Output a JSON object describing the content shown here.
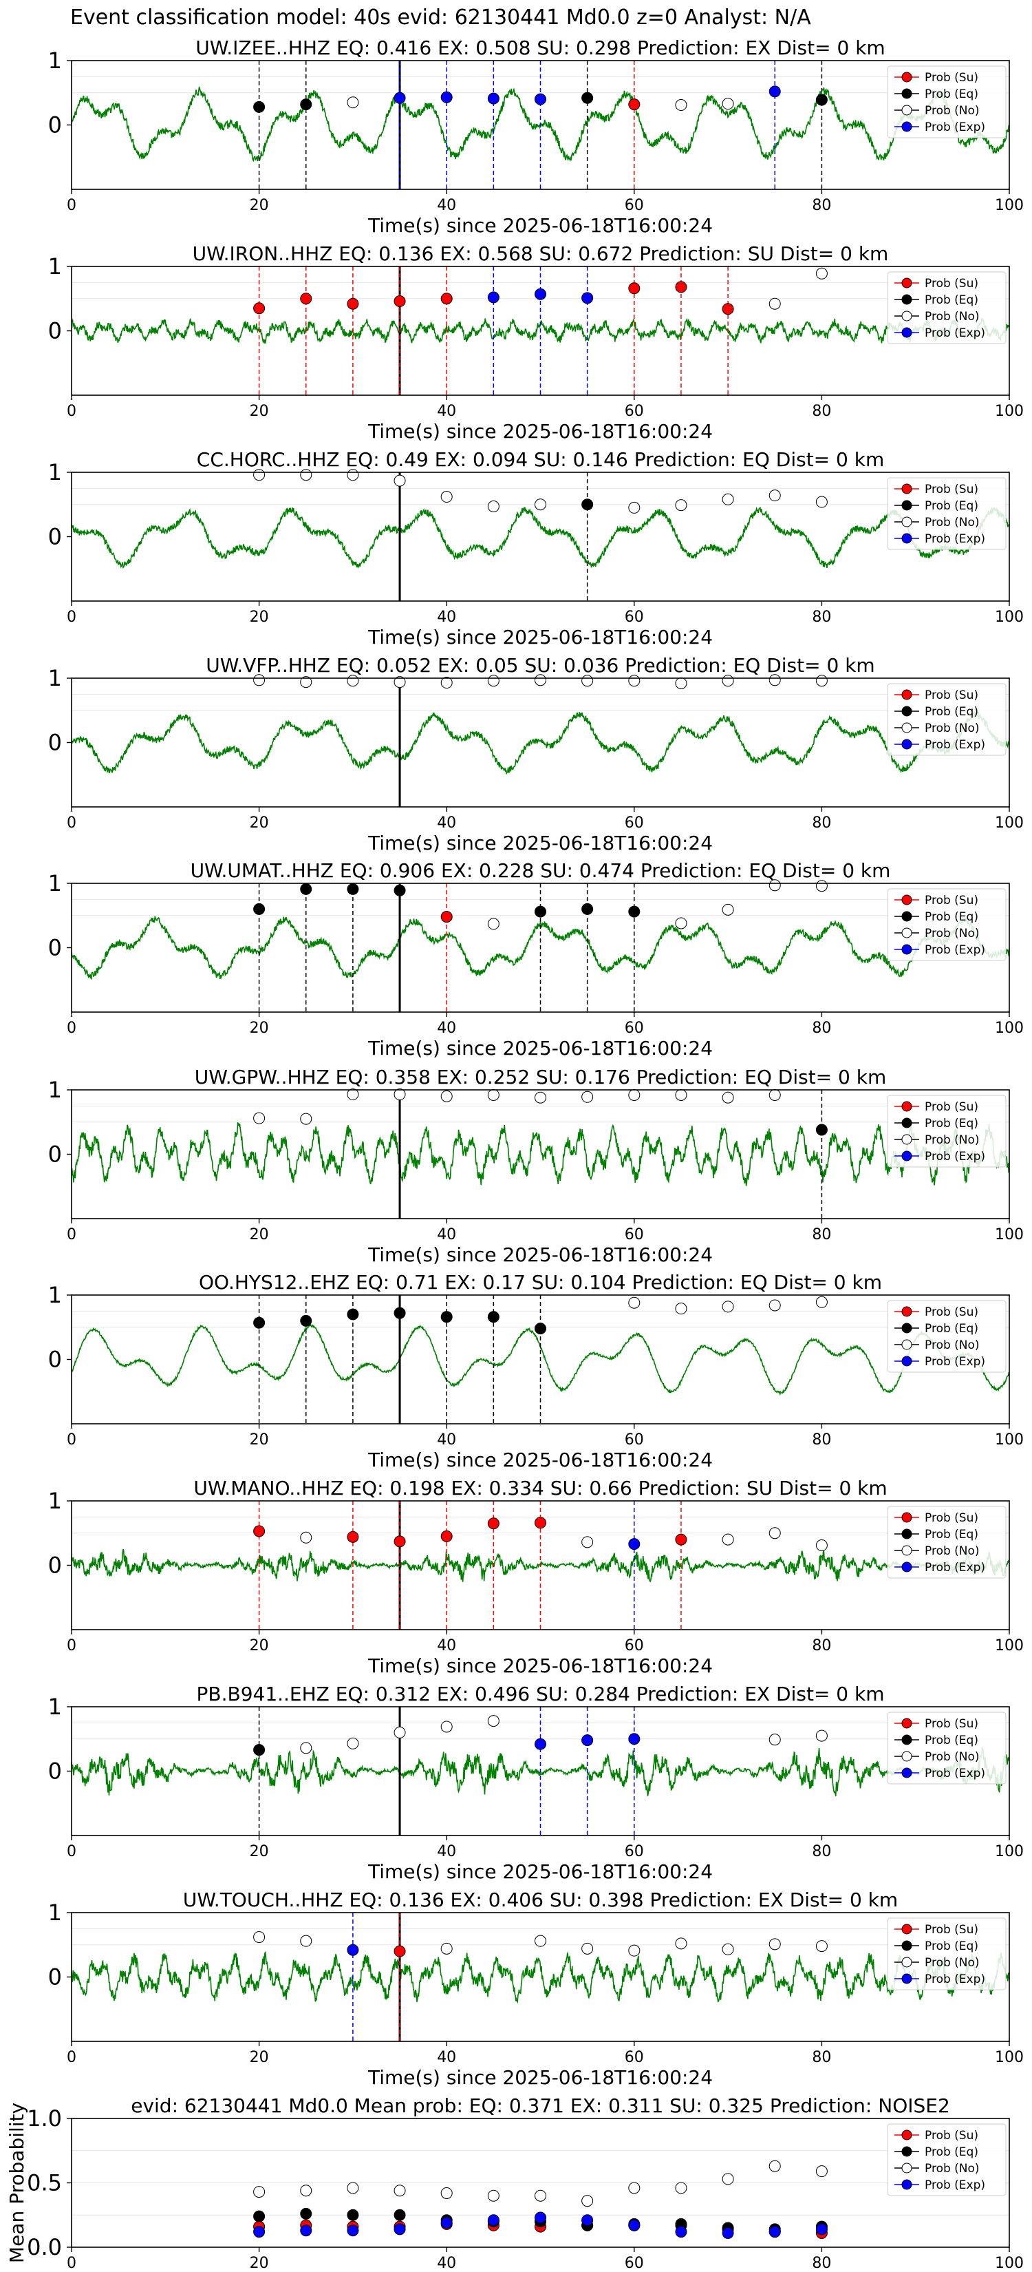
{
  "figure_title": "Event classification model: 40s evid: 62130441 Md0.0 z=0 Analyst: N/A",
  "colors": {
    "waveform": "#008000",
    "su": "#ff0000",
    "eq": "#000000",
    "no": "#ffffff",
    "exp": "#0000ff",
    "pick_line": "#000000"
  },
  "legend_labels": [
    "Prob (Su)",
    "Prob (Eq)",
    "Prob (No)",
    "Prob (Exp)"
  ],
  "chart_data": [
    {
      "type": "line",
      "station": "UW.IZEE..HHZ",
      "title": "UW.IZEE..HHZ   EQ: 0.416  EX: 0.508  SU: 0.298   Prediction: EX    Dist= 0 km",
      "xlabel": "Time(s) since 2025-06-18T16:00:24",
      "xlim": [
        0,
        100
      ],
      "ylim": [
        -1,
        1
      ],
      "xticks": [
        0,
        20,
        40,
        60,
        80,
        100
      ],
      "yticks": [
        0,
        1
      ],
      "grid": true,
      "legend": "right",
      "pick_time": 35,
      "points": [
        {
          "t": 20,
          "p": 0.28,
          "c": "eq"
        },
        {
          "t": 25,
          "p": 0.32,
          "c": "eq"
        },
        {
          "t": 30,
          "p": 0.35,
          "c": "no"
        },
        {
          "t": 35,
          "p": 0.42,
          "c": "exp"
        },
        {
          "t": 40,
          "p": 0.43,
          "c": "exp"
        },
        {
          "t": 45,
          "p": 0.41,
          "c": "exp"
        },
        {
          "t": 50,
          "p": 0.4,
          "c": "exp"
        },
        {
          "t": 55,
          "p": 0.42,
          "c": "eq"
        },
        {
          "t": 60,
          "p": 0.32,
          "c": "su"
        },
        {
          "t": 65,
          "p": 0.31,
          "c": "no"
        },
        {
          "t": 70,
          "p": 0.33,
          "c": "no"
        },
        {
          "t": 75,
          "p": 0.52,
          "c": "exp"
        },
        {
          "t": 80,
          "p": 0.39,
          "c": "eq"
        }
      ]
    },
    {
      "type": "line",
      "station": "UW.IRON..HHZ",
      "title": "UW.IRON..HHZ   EQ: 0.136  EX: 0.568  SU: 0.672   Prediction: SU    Dist= 0 km",
      "xlabel": "Time(s) since 2025-06-18T16:00:24",
      "xlim": [
        0,
        100
      ],
      "ylim": [
        -1,
        1
      ],
      "xticks": [
        0,
        20,
        40,
        60,
        80,
        100
      ],
      "yticks": [
        0,
        1
      ],
      "grid": true,
      "legend": "right",
      "pick_time": 35,
      "points": [
        {
          "t": 20,
          "p": 0.35,
          "c": "su"
        },
        {
          "t": 25,
          "p": 0.5,
          "c": "su"
        },
        {
          "t": 30,
          "p": 0.42,
          "c": "su"
        },
        {
          "t": 35,
          "p": 0.46,
          "c": "su"
        },
        {
          "t": 40,
          "p": 0.5,
          "c": "su"
        },
        {
          "t": 45,
          "p": 0.52,
          "c": "exp"
        },
        {
          "t": 50,
          "p": 0.57,
          "c": "exp"
        },
        {
          "t": 55,
          "p": 0.51,
          "c": "exp"
        },
        {
          "t": 60,
          "p": 0.66,
          "c": "su"
        },
        {
          "t": 65,
          "p": 0.68,
          "c": "su"
        },
        {
          "t": 70,
          "p": 0.34,
          "c": "su"
        },
        {
          "t": 75,
          "p": 0.42,
          "c": "no"
        },
        {
          "t": 80,
          "p": 0.89,
          "c": "no"
        }
      ]
    },
    {
      "type": "line",
      "station": "CC.HORC..HHZ",
      "title": "CC.HORC..HHZ   EQ: 0.49  EX: 0.094  SU: 0.146   Prediction: EQ    Dist= 0 km",
      "xlabel": "Time(s) since 2025-06-18T16:00:24",
      "xlim": [
        0,
        100
      ],
      "ylim": [
        -1,
        1
      ],
      "xticks": [
        0,
        20,
        40,
        60,
        80,
        100
      ],
      "yticks": [
        0,
        1
      ],
      "grid": true,
      "legend": "right",
      "pick_time": 35,
      "points": [
        {
          "t": 20,
          "p": 0.96,
          "c": "no"
        },
        {
          "t": 25,
          "p": 0.96,
          "c": "no"
        },
        {
          "t": 30,
          "p": 0.96,
          "c": "no"
        },
        {
          "t": 35,
          "p": 0.87,
          "c": "no"
        },
        {
          "t": 40,
          "p": 0.62,
          "c": "no"
        },
        {
          "t": 45,
          "p": 0.47,
          "c": "no"
        },
        {
          "t": 50,
          "p": 0.5,
          "c": "no"
        },
        {
          "t": 55,
          "p": 0.5,
          "c": "eq"
        },
        {
          "t": 60,
          "p": 0.45,
          "c": "no"
        },
        {
          "t": 65,
          "p": 0.49,
          "c": "no"
        },
        {
          "t": 70,
          "p": 0.58,
          "c": "no"
        },
        {
          "t": 75,
          "p": 0.64,
          "c": "no"
        },
        {
          "t": 80,
          "p": 0.54,
          "c": "no"
        }
      ]
    },
    {
      "type": "line",
      "station": "UW.VFP..HHZ",
      "title": "UW.VFP..HHZ   EQ: 0.052  EX: 0.05  SU: 0.036   Prediction: EQ    Dist= 0 km",
      "xlabel": "Time(s) since 2025-06-18T16:00:24",
      "xlim": [
        0,
        100
      ],
      "ylim": [
        -1,
        1
      ],
      "xticks": [
        0,
        20,
        40,
        60,
        80,
        100
      ],
      "yticks": [
        0,
        1
      ],
      "grid": true,
      "legend": "right",
      "pick_time": 35,
      "points": [
        {
          "t": 20,
          "p": 0.97,
          "c": "no"
        },
        {
          "t": 25,
          "p": 0.94,
          "c": "no"
        },
        {
          "t": 30,
          "p": 0.96,
          "c": "no"
        },
        {
          "t": 35,
          "p": 0.94,
          "c": "no"
        },
        {
          "t": 40,
          "p": 0.93,
          "c": "no"
        },
        {
          "t": 45,
          "p": 0.96,
          "c": "no"
        },
        {
          "t": 50,
          "p": 0.97,
          "c": "no"
        },
        {
          "t": 55,
          "p": 0.96,
          "c": "no"
        },
        {
          "t": 60,
          "p": 0.96,
          "c": "no"
        },
        {
          "t": 65,
          "p": 0.92,
          "c": "no"
        },
        {
          "t": 70,
          "p": 0.96,
          "c": "no"
        },
        {
          "t": 75,
          "p": 0.97,
          "c": "no"
        },
        {
          "t": 80,
          "p": 0.96,
          "c": "no"
        }
      ]
    },
    {
      "type": "line",
      "station": "UW.UMAT..HHZ",
      "title": "UW.UMAT..HHZ   EQ: 0.906  EX: 0.228  SU: 0.474   Prediction: EQ    Dist= 0 km",
      "xlabel": "Time(s) since 2025-06-18T16:00:24",
      "xlim": [
        0,
        100
      ],
      "ylim": [
        -1,
        1
      ],
      "xticks": [
        0,
        20,
        40,
        60,
        80,
        100
      ],
      "yticks": [
        0,
        1
      ],
      "grid": true,
      "legend": "right",
      "pick_time": 35,
      "points": [
        {
          "t": 20,
          "p": 0.6,
          "c": "eq"
        },
        {
          "t": 25,
          "p": 0.91,
          "c": "eq"
        },
        {
          "t": 30,
          "p": 0.91,
          "c": "eq"
        },
        {
          "t": 35,
          "p": 0.89,
          "c": "eq"
        },
        {
          "t": 40,
          "p": 0.48,
          "c": "su"
        },
        {
          "t": 45,
          "p": 0.37,
          "c": "no"
        },
        {
          "t": 50,
          "p": 0.56,
          "c": "eq"
        },
        {
          "t": 55,
          "p": 0.6,
          "c": "eq"
        },
        {
          "t": 60,
          "p": 0.56,
          "c": "eq"
        },
        {
          "t": 65,
          "p": 0.38,
          "c": "no"
        },
        {
          "t": 70,
          "p": 0.59,
          "c": "no"
        },
        {
          "t": 75,
          "p": 0.97,
          "c": "no"
        },
        {
          "t": 80,
          "p": 0.96,
          "c": "no"
        }
      ]
    },
    {
      "type": "line",
      "station": "UW.GPW..HHZ",
      "title": "UW.GPW..HHZ   EQ: 0.358  EX: 0.252  SU: 0.176   Prediction: EQ    Dist= 0 km",
      "xlabel": "Time(s) since 2025-06-18T16:00:24",
      "xlim": [
        0,
        100
      ],
      "ylim": [
        -1,
        1
      ],
      "xticks": [
        0,
        20,
        40,
        60,
        80,
        100
      ],
      "yticks": [
        0,
        1
      ],
      "grid": true,
      "legend": "right",
      "pick_time": 35,
      "points": [
        {
          "t": 20,
          "p": 0.56,
          "c": "no"
        },
        {
          "t": 25,
          "p": 0.55,
          "c": "no"
        },
        {
          "t": 30,
          "p": 0.93,
          "c": "no"
        },
        {
          "t": 35,
          "p": 0.93,
          "c": "no"
        },
        {
          "t": 40,
          "p": 0.9,
          "c": "no"
        },
        {
          "t": 45,
          "p": 0.92,
          "c": "no"
        },
        {
          "t": 50,
          "p": 0.88,
          "c": "no"
        },
        {
          "t": 55,
          "p": 0.89,
          "c": "no"
        },
        {
          "t": 60,
          "p": 0.92,
          "c": "no"
        },
        {
          "t": 65,
          "p": 0.92,
          "c": "no"
        },
        {
          "t": 70,
          "p": 0.88,
          "c": "no"
        },
        {
          "t": 75,
          "p": 0.92,
          "c": "no"
        },
        {
          "t": 80,
          "p": 0.38,
          "c": "eq"
        }
      ]
    },
    {
      "type": "line",
      "station": "OO.HYS12..EHZ",
      "title": "OO.HYS12..EHZ   EQ: 0.71  EX: 0.17  SU: 0.104   Prediction: EQ    Dist= 0 km",
      "xlabel": "Time(s) since 2025-06-18T16:00:24",
      "xlim": [
        0,
        100
      ],
      "ylim": [
        -1,
        1
      ],
      "xticks": [
        0,
        20,
        40,
        60,
        80,
        100
      ],
      "yticks": [
        0,
        1
      ],
      "grid": true,
      "legend": "right",
      "pick_time": 35,
      "points": [
        {
          "t": 20,
          "p": 0.57,
          "c": "eq"
        },
        {
          "t": 25,
          "p": 0.6,
          "c": "eq"
        },
        {
          "t": 30,
          "p": 0.7,
          "c": "eq"
        },
        {
          "t": 35,
          "p": 0.72,
          "c": "eq"
        },
        {
          "t": 40,
          "p": 0.66,
          "c": "eq"
        },
        {
          "t": 45,
          "p": 0.66,
          "c": "eq"
        },
        {
          "t": 50,
          "p": 0.48,
          "c": "eq"
        },
        {
          "t": 60,
          "p": 0.88,
          "c": "no"
        },
        {
          "t": 65,
          "p": 0.79,
          "c": "no"
        },
        {
          "t": 70,
          "p": 0.82,
          "c": "no"
        },
        {
          "t": 75,
          "p": 0.84,
          "c": "no"
        },
        {
          "t": 80,
          "p": 0.89,
          "c": "no"
        }
      ]
    },
    {
      "type": "line",
      "station": "UW.MANO..HHZ",
      "title": "UW.MANO..HHZ   EQ: 0.198  EX: 0.334  SU: 0.66   Prediction: SU    Dist= 0 km",
      "xlabel": "Time(s) since 2025-06-18T16:00:24",
      "xlim": [
        0,
        100
      ],
      "ylim": [
        -1,
        1
      ],
      "xticks": [
        0,
        20,
        40,
        60,
        80,
        100
      ],
      "yticks": [
        0,
        1
      ],
      "grid": true,
      "legend": "right",
      "pick_time": 35,
      "points": [
        {
          "t": 20,
          "p": 0.53,
          "c": "su"
        },
        {
          "t": 25,
          "p": 0.43,
          "c": "no"
        },
        {
          "t": 30,
          "p": 0.44,
          "c": "su"
        },
        {
          "t": 35,
          "p": 0.37,
          "c": "su"
        },
        {
          "t": 40,
          "p": 0.45,
          "c": "su"
        },
        {
          "t": 45,
          "p": 0.65,
          "c": "su"
        },
        {
          "t": 50,
          "p": 0.66,
          "c": "su"
        },
        {
          "t": 55,
          "p": 0.36,
          "c": "no"
        },
        {
          "t": 60,
          "p": 0.33,
          "c": "exp"
        },
        {
          "t": 65,
          "p": 0.4,
          "c": "su"
        },
        {
          "t": 70,
          "p": 0.4,
          "c": "no"
        },
        {
          "t": 75,
          "p": 0.5,
          "c": "no"
        },
        {
          "t": 80,
          "p": 0.31,
          "c": "no"
        }
      ]
    },
    {
      "type": "line",
      "station": "PB.B941..EHZ",
      "title": "PB.B941..EHZ   EQ: 0.312  EX: 0.496  SU: 0.284   Prediction: EX    Dist= 0 km",
      "xlabel": "Time(s) since 2025-06-18T16:00:24",
      "xlim": [
        0,
        100
      ],
      "ylim": [
        -1,
        1
      ],
      "xticks": [
        0,
        20,
        40,
        60,
        80,
        100
      ],
      "yticks": [
        0,
        1
      ],
      "grid": true,
      "legend": "right",
      "pick_time": 35,
      "points": [
        {
          "t": 20,
          "p": 0.33,
          "c": "eq"
        },
        {
          "t": 25,
          "p": 0.36,
          "c": "no"
        },
        {
          "t": 30,
          "p": 0.43,
          "c": "no"
        },
        {
          "t": 35,
          "p": 0.6,
          "c": "no"
        },
        {
          "t": 40,
          "p": 0.69,
          "c": "no"
        },
        {
          "t": 45,
          "p": 0.78,
          "c": "no"
        },
        {
          "t": 50,
          "p": 0.42,
          "c": "exp"
        },
        {
          "t": 55,
          "p": 0.48,
          "c": "exp"
        },
        {
          "t": 60,
          "p": 0.5,
          "c": "exp"
        },
        {
          "t": 75,
          "p": 0.49,
          "c": "no"
        },
        {
          "t": 80,
          "p": 0.55,
          "c": "no"
        }
      ]
    },
    {
      "type": "line",
      "station": "UW.TOUCH..HHZ",
      "title": "UW.TOUCH..HHZ   EQ: 0.136  EX: 0.406  SU: 0.398   Prediction: EX    Dist= 0 km",
      "xlabel": "Time(s) since 2025-06-18T16:00:24",
      "xlim": [
        0,
        100
      ],
      "ylim": [
        -1,
        1
      ],
      "xticks": [
        0,
        20,
        40,
        60,
        80,
        100
      ],
      "yticks": [
        0,
        1
      ],
      "grid": true,
      "legend": "right",
      "pick_time": 35,
      "points": [
        {
          "t": 20,
          "p": 0.62,
          "c": "no"
        },
        {
          "t": 25,
          "p": 0.56,
          "c": "no"
        },
        {
          "t": 30,
          "p": 0.42,
          "c": "exp"
        },
        {
          "t": 35,
          "p": 0.4,
          "c": "su"
        },
        {
          "t": 40,
          "p": 0.44,
          "c": "no"
        },
        {
          "t": 50,
          "p": 0.56,
          "c": "no"
        },
        {
          "t": 55,
          "p": 0.44,
          "c": "no"
        },
        {
          "t": 60,
          "p": 0.41,
          "c": "no"
        },
        {
          "t": 65,
          "p": 0.52,
          "c": "no"
        },
        {
          "t": 70,
          "p": 0.43,
          "c": "no"
        },
        {
          "t": 75,
          "p": 0.51,
          "c": "no"
        },
        {
          "t": 80,
          "p": 0.48,
          "c": "no"
        }
      ]
    },
    {
      "type": "scatter",
      "title": "evid: 62130441  Md0.0   Mean prob:   EQ: 0.371  EX: 0.311  SU: 0.325   Prediction: NOISE2",
      "ylabel": "Mean Probability",
      "xlim": [
        0,
        100
      ],
      "ylim": [
        0,
        1
      ],
      "xticks": [
        0,
        20,
        40,
        60,
        80,
        100
      ],
      "yticks": [
        0.0,
        0.5,
        1.0
      ],
      "grid": true,
      "legend": "upper right",
      "x": [
        20,
        25,
        30,
        35,
        40,
        45,
        50,
        55,
        60,
        65,
        70,
        75,
        80
      ],
      "series": [
        {
          "name": "Prob (Su)",
          "color": "su",
          "values": [
            0.16,
            0.17,
            0.16,
            0.16,
            0.18,
            0.17,
            0.16,
            0.17,
            0.17,
            0.17,
            0.14,
            0.12,
            0.11
          ]
        },
        {
          "name": "Prob (Eq)",
          "color": "eq",
          "values": [
            0.24,
            0.26,
            0.25,
            0.25,
            0.21,
            0.2,
            0.2,
            0.17,
            0.18,
            0.18,
            0.15,
            0.14,
            0.16
          ]
        },
        {
          "name": "Prob (No)",
          "color": "no",
          "values": [
            0.43,
            0.44,
            0.46,
            0.44,
            0.42,
            0.4,
            0.4,
            0.36,
            0.46,
            0.46,
            0.53,
            0.63,
            0.59
          ]
        },
        {
          "name": "Prob (Exp)",
          "color": "exp",
          "values": [
            0.12,
            0.13,
            0.13,
            0.14,
            0.19,
            0.21,
            0.23,
            0.21,
            0.17,
            0.12,
            0.11,
            0.12,
            0.14
          ]
        }
      ]
    }
  ]
}
